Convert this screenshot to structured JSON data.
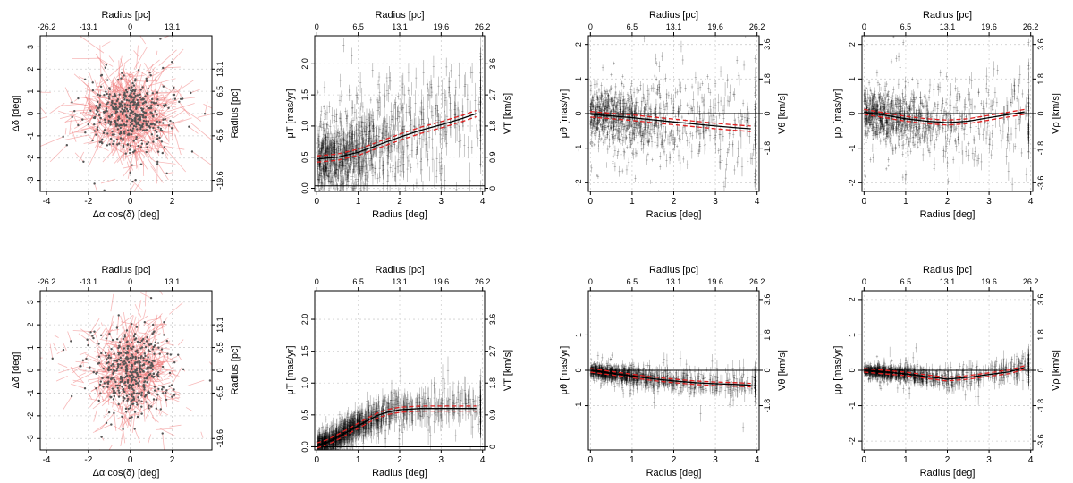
{
  "figure": {
    "top_axis_label": "Radius [pc]",
    "x_label_radius": "Radius [deg]",
    "x_label_sky": "Δα cos(δ) [deg]",
    "y_label_sky": "Δδ [deg]",
    "right_label_sky": "Radius [pc]"
  },
  "chart_data": [
    {
      "id": "sky-top",
      "type": "scatter",
      "subtype": "vector_field",
      "xlabel": "Δα cos(δ) [deg]",
      "ylabel": "Δδ [deg]",
      "top_label": "Radius [pc]",
      "right_label": "Radius [pc]",
      "xlim": [
        -4.3,
        3.9
      ],
      "ylim": [
        -3.5,
        3.5
      ],
      "xticks": [
        "-4",
        "-2",
        "0",
        "2"
      ],
      "xtick_values": [
        -4,
        -2,
        0,
        2
      ],
      "yticks": [
        "-3",
        "-2",
        "-1",
        "0",
        "1",
        "2",
        "3"
      ],
      "ytick_values": [
        -3,
        -2,
        -1,
        0,
        1,
        2,
        3
      ],
      "top_ticks": [
        "-26.2",
        "-13.1",
        "0",
        "13.1"
      ],
      "top_tick_values": [
        -4,
        -2,
        0,
        2
      ],
      "right_ticks": [
        "-19.6",
        "-6.5",
        "0",
        "6.5",
        "13.1"
      ],
      "right_tick_values": [
        -3,
        -1,
        0,
        1,
        2
      ],
      "cluster": {
        "n": 900,
        "sigma_x": 1.2,
        "sigma_y": 1.1,
        "vector_scale": 1.0
      },
      "colors": {
        "vector": "#f08080",
        "point": "#555555"
      }
    },
    {
      "id": "muT-top",
      "type": "line",
      "subtype": "profile_with_errorbars",
      "xlabel": "Radius [deg]",
      "ylabel": "μT [mas/yr]",
      "top_label": "Radius [pc]",
      "right_label": "VT [km/s]",
      "xlim": [
        -0.05,
        4.05
      ],
      "ylim": [
        -0.05,
        2.45
      ],
      "xticks": [
        "0",
        "1",
        "2",
        "3",
        "4"
      ],
      "xtick_values": [
        0,
        1,
        2,
        3,
        4
      ],
      "yticks": [
        "0.0",
        "0.5",
        "1.0",
        "1.5",
        "2.0"
      ],
      "ytick_values": [
        0,
        0.5,
        1,
        1.5,
        2
      ],
      "top_ticks": [
        "0",
        "6.5",
        "13.1",
        "19.6",
        "26.2"
      ],
      "top_tick_values": [
        0,
        1,
        2,
        3,
        4
      ],
      "right_ticks": [
        "0",
        "0.9",
        "1.8",
        "2.7",
        "3.6"
      ],
      "right_tick_values": [
        0,
        0.5,
        1,
        1.5,
        2
      ],
      "reference_line": 0.04,
      "profile": {
        "x": [
          0,
          0.5,
          1,
          1.5,
          2,
          2.5,
          3,
          3.5,
          3.85
        ],
        "y": [
          0.47,
          0.5,
          0.58,
          0.7,
          0.82,
          0.93,
          1.02,
          1.12,
          1.2
        ]
      },
      "band": 0.05,
      "scatter": {
        "n": 1100,
        "r_scale": 0.9,
        "spread": 0.4,
        "err": 0.06
      }
    },
    {
      "id": "muTheta-top",
      "type": "line",
      "subtype": "profile_with_errorbars",
      "xlabel": "Radius [deg]",
      "ylabel": "μθ [mas/yr]",
      "top_label": "Radius [pc]",
      "right_label": "Vθ [km/s]",
      "xlim": [
        -0.05,
        4.05
      ],
      "ylim": [
        -2.25,
        2.25
      ],
      "xticks": [
        "0",
        "1",
        "2",
        "3",
        "4"
      ],
      "xtick_values": [
        0,
        1,
        2,
        3,
        4
      ],
      "yticks": [
        "-2",
        "-1",
        "0",
        "1",
        "2"
      ],
      "ytick_values": [
        -2,
        -1,
        0,
        1,
        2
      ],
      "top_ticks": [
        "0",
        "6.5",
        "13.1",
        "19.6",
        "26.2"
      ],
      "top_tick_values": [
        0,
        1,
        2,
        3,
        4
      ],
      "right_ticks": [
        "-1.8",
        "0",
        "1.8",
        "3.6"
      ],
      "right_tick_values": [
        -1,
        0,
        1,
        2
      ],
      "reference_line": 0,
      "profile": {
        "x": [
          0,
          0.5,
          1,
          1.5,
          2,
          2.5,
          3,
          3.5,
          3.85
        ],
        "y": [
          -0.02,
          -0.07,
          -0.12,
          -0.18,
          -0.24,
          -0.3,
          -0.36,
          -0.41,
          -0.44
        ]
      },
      "band": 0.08,
      "scatter": {
        "n": 1100,
        "r_scale": 0.9,
        "spread": 0.55,
        "err": 0.06
      }
    },
    {
      "id": "muRho-top",
      "type": "line",
      "subtype": "profile_with_errorbars",
      "xlabel": "Radius [deg]",
      "ylabel": "μρ [mas/yr]",
      "top_label": "Radius [pc]",
      "right_label": "Vρ [km/s]",
      "xlim": [
        -0.05,
        4.05
      ],
      "ylim": [
        -2.25,
        2.25
      ],
      "xticks": [
        "0",
        "1",
        "2",
        "3",
        "4"
      ],
      "xtick_values": [
        0,
        1,
        2,
        3,
        4
      ],
      "yticks": [
        "-2",
        "-1",
        "0",
        "1",
        "2"
      ],
      "ytick_values": [
        -2,
        -1,
        0,
        1,
        2
      ],
      "top_ticks": [
        "0",
        "6.5",
        "13.1",
        "19.6",
        "26.2"
      ],
      "top_tick_values": [
        0,
        1,
        2,
        3,
        4
      ],
      "right_ticks": [
        "-3.6",
        "-1.8",
        "0",
        "1.8",
        "3.6"
      ],
      "right_tick_values": [
        -2,
        -1,
        0,
        1,
        2
      ],
      "reference_line": 0,
      "profile": {
        "x": [
          0,
          0.5,
          1,
          1.5,
          2,
          2.5,
          3,
          3.5,
          3.85
        ],
        "y": [
          0.05,
          -0.05,
          -0.15,
          -0.22,
          -0.26,
          -0.22,
          -0.12,
          -0.02,
          0.05
        ]
      },
      "band": 0.07,
      "scatter": {
        "n": 1100,
        "r_scale": 0.9,
        "spread": 0.5,
        "err": 0.06
      }
    },
    {
      "id": "sky-bottom",
      "type": "scatter",
      "subtype": "vector_field",
      "xlabel": "Δα cos(δ) [deg]",
      "ylabel": "Δδ [deg]",
      "top_label": "Radius [pc]",
      "right_label": "Radius [pc]",
      "xlim": [
        -4.3,
        3.9
      ],
      "ylim": [
        -3.5,
        3.5
      ],
      "xticks": [
        "-4",
        "-2",
        "0",
        "2"
      ],
      "xtick_values": [
        -4,
        -2,
        0,
        2
      ],
      "yticks": [
        "-3",
        "-2",
        "-1",
        "0",
        "1",
        "2",
        "3"
      ],
      "ytick_values": [
        -3,
        -2,
        -1,
        0,
        1,
        2,
        3
      ],
      "top_ticks": [
        "-26.2",
        "-13.1",
        "0",
        "13.1"
      ],
      "top_tick_values": [
        -4,
        -2,
        0,
        2
      ],
      "right_ticks": [
        "-19.6",
        "-6.5",
        "0",
        "6.5",
        "13.1"
      ],
      "right_tick_values": [
        -3,
        -1,
        0,
        1,
        2
      ],
      "cluster": {
        "n": 900,
        "sigma_x": 1.1,
        "sigma_y": 1.1,
        "vector_scale": 0.8
      },
      "colors": {
        "vector": "#f08080",
        "point": "#555555"
      }
    },
    {
      "id": "muT-bottom",
      "type": "line",
      "subtype": "profile_with_errorbars",
      "xlabel": "Radius [deg]",
      "ylabel": "μT [mas/yr]",
      "top_label": "Radius [pc]",
      "right_label": "VT [km/s]",
      "xlim": [
        -0.05,
        4.05
      ],
      "ylim": [
        -0.05,
        2.45
      ],
      "xticks": [
        "0",
        "1",
        "2",
        "3",
        "4"
      ],
      "xtick_values": [
        0,
        1,
        2,
        3,
        4
      ],
      "yticks": [
        "0.0",
        "0.5",
        "1.0",
        "1.5",
        "2.0"
      ],
      "ytick_values": [
        0,
        0.5,
        1,
        1.5,
        2
      ],
      "top_ticks": [
        "0",
        "6.5",
        "13.1",
        "19.6",
        "26.2"
      ],
      "top_tick_values": [
        0,
        1,
        2,
        3,
        4
      ],
      "right_ticks": [
        "0",
        "0.9",
        "1.8",
        "2.7",
        "3.6"
      ],
      "right_tick_values": [
        0,
        0.5,
        1,
        1.5,
        2
      ],
      "reference_line": 0,
      "profile": {
        "x": [
          0,
          0.25,
          0.5,
          0.75,
          1,
          1.25,
          1.5,
          1.75,
          2,
          2.5,
          3,
          3.5,
          3.85
        ],
        "y": [
          0.02,
          0.07,
          0.15,
          0.24,
          0.33,
          0.42,
          0.5,
          0.55,
          0.58,
          0.6,
          0.6,
          0.6,
          0.6
        ]
      },
      "band": 0.04,
      "scatter": {
        "n": 1100,
        "r_scale": 0.9,
        "spread": 0.12,
        "err": 0.06
      }
    },
    {
      "id": "muTheta-bottom",
      "type": "line",
      "subtype": "profile_with_errorbars",
      "xlabel": "Radius [deg]",
      "ylabel": "μθ [mas/yr]",
      "top_label": "Radius [pc]",
      "right_label": "Vθ [km/s]",
      "xlim": [
        -0.05,
        4.05
      ],
      "ylim": [
        -2.25,
        2.25
      ],
      "xticks": [
        "0",
        "1",
        "2",
        "3",
        "4"
      ],
      "xtick_values": [
        0,
        1,
        2,
        3,
        4
      ],
      "yticks": [
        "-1",
        "0",
        "1"
      ],
      "ytick_values": [
        -1,
        0,
        1
      ],
      "top_ticks": [
        "0",
        "6.5",
        "13.1",
        "19.6",
        "26.2"
      ],
      "top_tick_values": [
        0,
        1,
        2,
        3,
        4
      ],
      "right_ticks": [
        "-1.8",
        "0",
        "1.8",
        "3.6"
      ],
      "right_tick_values": [
        -1,
        0,
        1,
        2
      ],
      "reference_line": 0,
      "profile": {
        "x": [
          0,
          0.5,
          1,
          1.5,
          2,
          2.5,
          3,
          3.5,
          3.85
        ],
        "y": [
          0,
          -0.08,
          -0.16,
          -0.24,
          -0.3,
          -0.35,
          -0.38,
          -0.4,
          -0.42
        ]
      },
      "band": 0.05,
      "scatter": {
        "n": 1100,
        "r_scale": 0.9,
        "spread": 0.14,
        "err": 0.06
      }
    },
    {
      "id": "muRho-bottom",
      "type": "line",
      "subtype": "profile_with_errorbars",
      "xlabel": "Radius [deg]",
      "ylabel": "μρ [mas/yr]",
      "top_label": "Radius [pc]",
      "right_label": "Vρ [km/s]",
      "xlim": [
        -0.05,
        4.05
      ],
      "ylim": [
        -2.25,
        2.25
      ],
      "xticks": [
        "0",
        "1",
        "2",
        "3",
        "4"
      ],
      "xtick_values": [
        0,
        1,
        2,
        3,
        4
      ],
      "yticks": [
        "-2",
        "-1",
        "0",
        "1",
        "2"
      ],
      "ytick_values": [
        -2,
        -1,
        0,
        1,
        2
      ],
      "top_ticks": [
        "0",
        "6.5",
        "13.1",
        "19.6",
        "26.2"
      ],
      "top_tick_values": [
        0,
        1,
        2,
        3,
        4
      ],
      "right_ticks": [
        "-3.6",
        "-1.8",
        "0",
        "1.8",
        "3.6"
      ],
      "right_tick_values": [
        -2,
        -1,
        0,
        1,
        2
      ],
      "reference_line": 0,
      "profile": {
        "x": [
          0,
          0.5,
          1,
          1.5,
          2,
          2.5,
          3,
          3.5,
          3.85
        ],
        "y": [
          0,
          -0.05,
          -0.1,
          -0.18,
          -0.25,
          -0.2,
          -0.12,
          -0.04,
          0.08
        ]
      },
      "band": 0.05,
      "scatter": {
        "n": 1100,
        "r_scale": 0.9,
        "spread": 0.12,
        "err": 0.06
      }
    }
  ]
}
